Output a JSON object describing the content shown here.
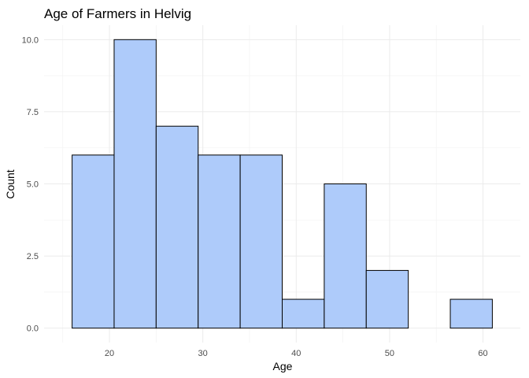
{
  "chart_data": {
    "type": "histogram",
    "title": "Age of Farmers in Helvig",
    "xlabel": "Age",
    "ylabel": "Count",
    "bins": [
      {
        "x0": 16.0,
        "x1": 20.5,
        "count": 6
      },
      {
        "x0": 20.5,
        "x1": 25.0,
        "count": 10
      },
      {
        "x0": 25.0,
        "x1": 29.5,
        "count": 7
      },
      {
        "x0": 29.5,
        "x1": 34.0,
        "count": 6
      },
      {
        "x0": 34.0,
        "x1": 38.5,
        "count": 6
      },
      {
        "x0": 38.5,
        "x1": 43.0,
        "count": 1
      },
      {
        "x0": 43.0,
        "x1": 47.5,
        "count": 5
      },
      {
        "x0": 47.5,
        "x1": 52.0,
        "count": 2
      },
      {
        "x0": 52.0,
        "x1": 56.5,
        "count": 0
      },
      {
        "x0": 56.5,
        "x1": 61.0,
        "count": 1
      }
    ],
    "xlim": [
      13.0,
      64.0
    ],
    "ylim": [
      -0.5,
      10.5
    ],
    "x_ticks": [
      20,
      30,
      40,
      50,
      60
    ],
    "y_ticks": [
      0,
      2.5,
      5,
      7.5,
      10
    ],
    "x_tick_labels": [
      "20",
      "30",
      "40",
      "50",
      "60"
    ],
    "y_tick_labels": [
      "0.0",
      "2.5",
      "5.0",
      "7.5",
      "10.0"
    ],
    "bar_fill": "#aecbfa",
    "bar_outline": "#000000",
    "grid": true,
    "legend": "none"
  }
}
